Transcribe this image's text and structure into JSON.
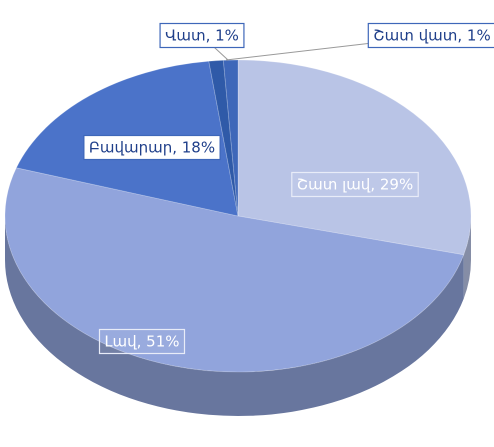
{
  "chart_data": {
    "type": "pie3d",
    "categories": [
      "Շատ լավ",
      "Լավ",
      "Բավարար",
      "Վատ",
      "Շատ վատ"
    ],
    "values": [
      29,
      51,
      18,
      1,
      1
    ],
    "value_labels": [
      "Շատ լավ, 29%",
      "Լավ, 51%",
      "Բավարար, 18%",
      "Վատ, 1%",
      "Շատ վատ, 1%"
    ],
    "colors": [
      "#b9c4e6",
      "#91a4dc",
      "#4b73c9",
      "#2f5aa8",
      "#3e67b9"
    ]
  }
}
